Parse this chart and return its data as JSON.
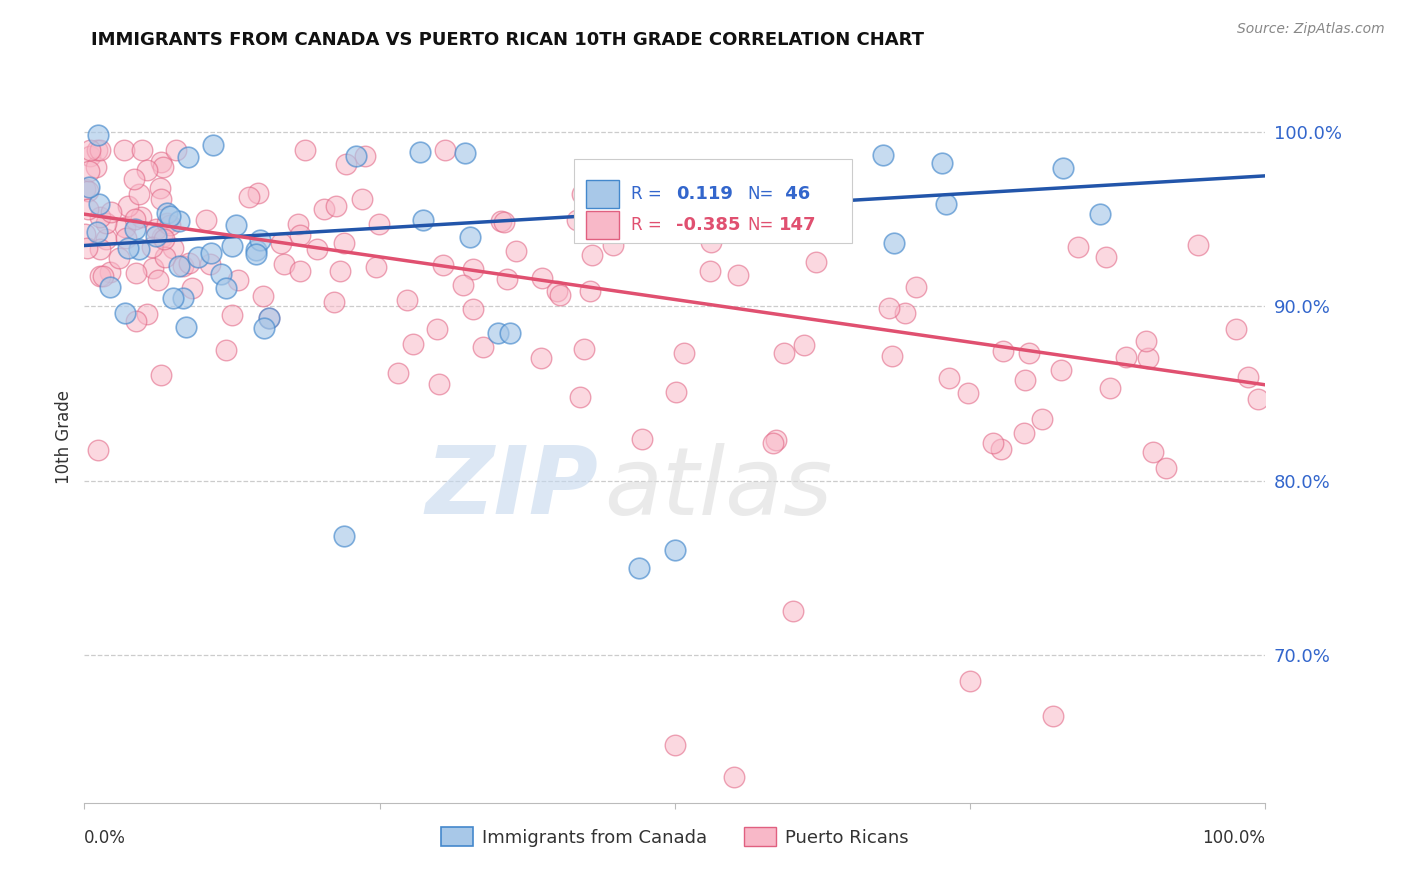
{
  "title": "IMMIGRANTS FROM CANADA VS PUERTO RICAN 10TH GRADE CORRELATION CHART",
  "source": "Source: ZipAtlas.com",
  "ylabel": "10th Grade",
  "blue_label": "Immigrants from Canada",
  "pink_label": "Puerto Ricans",
  "ytick_labels": [
    "100.0%",
    "90.0%",
    "80.0%",
    "70.0%"
  ],
  "ytick_values": [
    1.0,
    0.9,
    0.8,
    0.7
  ],
  "xlim": [
    0.0,
    1.0
  ],
  "ylim": [
    0.615,
    1.035
  ],
  "blue_fill": "#a8c8e8",
  "blue_edge": "#4488cc",
  "pink_fill": "#f8b8c8",
  "pink_edge": "#e06080",
  "blue_line": "#2255aa",
  "pink_line": "#e05070",
  "watermark_zip": "ZIP",
  "watermark_atlas": "atlas",
  "legend_text_blue": [
    "R =",
    "0.119",
    "N=",
    " 46"
  ],
  "legend_text_pink": [
    "R =",
    "-0.385",
    "N=",
    "147"
  ],
  "blue_r": 0.119,
  "blue_n": 46,
  "pink_r": -0.385,
  "pink_n": 147,
  "blue_line_start_y": 0.935,
  "blue_line_end_y": 0.975,
  "pink_line_start_y": 0.953,
  "pink_line_end_y": 0.855
}
